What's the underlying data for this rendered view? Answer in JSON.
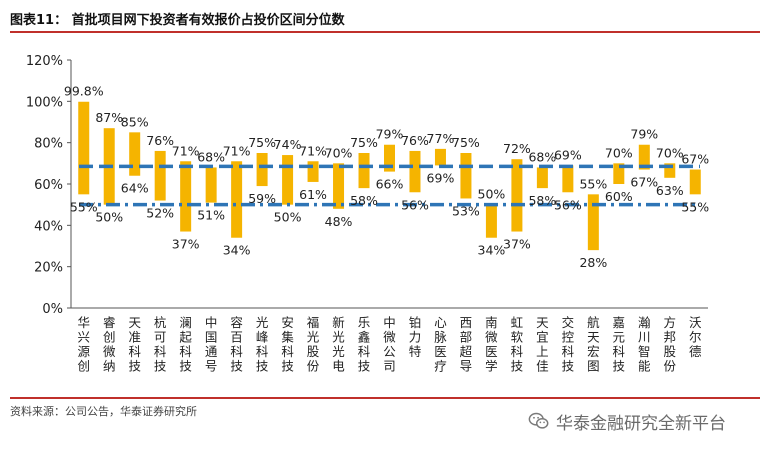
{
  "header": {
    "title": "图表11：  首批项目网下投资者有效报价占投价区间分位数"
  },
  "footer": {
    "source": "资料来源：公司公告，华泰证券研究所",
    "watermark": "华泰金融研究全新平台",
    "watermark_icon": "wechat-icon"
  },
  "colors": {
    "bar": "#f5b400",
    "ref_line": "#2e75b6",
    "accent_rule": "#c0302b"
  },
  "chart_data": {
    "type": "bar",
    "subtype": "floating-range",
    "ylim": [
      0,
      120
    ],
    "yticks": [
      0,
      20,
      40,
      60,
      80,
      100,
      120
    ],
    "ytick_labels": [
      "0%",
      "20%",
      "40%",
      "60%",
      "80%",
      "100%",
      "120%"
    ],
    "grid": false,
    "legend": "none",
    "categories": [
      "华兴源创",
      "睿创微纳",
      "天准科技",
      "杭可科技",
      "澜起科技",
      "中国通号",
      "容百科技",
      "光峰科技",
      "安集科技",
      "福光股份",
      "新光光电",
      "乐鑫科技",
      "中微公司",
      "铂力特",
      "心脉医疗",
      "西部超导",
      "南微医学",
      "虹软科技",
      "天宜上佳",
      "交控科技",
      "航天宏图",
      "嘉元科技",
      "瀚川智能",
      "方邦股份",
      "沃尔德"
    ],
    "high": [
      99.8,
      87,
      85,
      76,
      71,
      68,
      71,
      75,
      74,
      71,
      70,
      75,
      79,
      76,
      77,
      75,
      50,
      72,
      68,
      69,
      55,
      70,
      79,
      70,
      67
    ],
    "low": [
      55,
      50,
      64,
      52,
      37,
      51,
      34,
      59,
      50,
      61,
      48,
      58,
      66,
      56,
      69,
      53,
      34,
      37,
      58,
      56,
      28,
      60,
      67,
      63,
      55
    ],
    "high_labels": [
      "99.8%",
      "87%",
      "85%",
      "76%",
      "71%",
      "68%",
      "71%",
      "75%",
      "74%",
      "71%",
      "70%",
      "75%",
      "79%",
      "76%",
      "77%",
      "75%",
      "50%",
      "72%",
      "68%",
      "69%",
      "55%",
      "70%",
      "79%",
      "70%",
      "67%"
    ],
    "low_labels": [
      "55%",
      "50%",
      "64%",
      "52%",
      "37%",
      "51%",
      "34%",
      "59%",
      "50%",
      "61%",
      "48%",
      "58%",
      "66%",
      "56%",
      "69%",
      "53%",
      "34%",
      "37%",
      "58%",
      "56%",
      "28%",
      "60%",
      "67%",
      "63%",
      "55%"
    ],
    "reference_lines": [
      {
        "style": "dashed",
        "value": 68.5
      },
      {
        "style": "dash-dot",
        "value": 50
      }
    ]
  }
}
